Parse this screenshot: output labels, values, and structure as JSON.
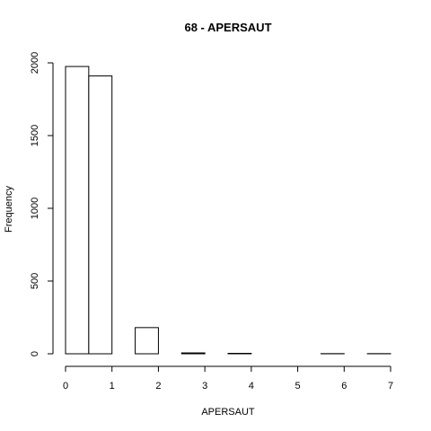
{
  "chart_data": {
    "type": "bar",
    "title": "68 - APERSAUT",
    "xlabel": "APERSAUT",
    "ylabel": "Frequency",
    "bin_width": 0.5,
    "bins": [
      {
        "x0": 0.0,
        "x1": 0.5,
        "count": 1975
      },
      {
        "x0": 0.5,
        "x1": 1.0,
        "count": 1910
      },
      {
        "x0": 1.0,
        "x1": 1.5,
        "count": 0
      },
      {
        "x0": 1.5,
        "x1": 2.0,
        "count": 180
      },
      {
        "x0": 2.0,
        "x1": 2.5,
        "count": 0
      },
      {
        "x0": 2.5,
        "x1": 3.0,
        "count": 6
      },
      {
        "x0": 3.0,
        "x1": 3.5,
        "count": 0
      },
      {
        "x0": 3.5,
        "x1": 4.0,
        "count": 3
      },
      {
        "x0": 4.0,
        "x1": 4.5,
        "count": 0
      },
      {
        "x0": 4.5,
        "x1": 5.0,
        "count": 0
      },
      {
        "x0": 5.0,
        "x1": 5.5,
        "count": 0
      },
      {
        "x0": 5.5,
        "x1": 6.0,
        "count": 1
      },
      {
        "x0": 6.0,
        "x1": 6.5,
        "count": 0
      },
      {
        "x0": 6.5,
        "x1": 7.0,
        "count": 1
      }
    ],
    "xlim": [
      0,
      7
    ],
    "ylim": [
      0,
      2000
    ],
    "x_ticks": [
      "0",
      "1",
      "2",
      "3",
      "4",
      "5",
      "6",
      "7"
    ],
    "y_ticks": [
      "0",
      "500",
      "1000",
      "1500",
      "2000"
    ],
    "grid": false,
    "legend": "none"
  }
}
